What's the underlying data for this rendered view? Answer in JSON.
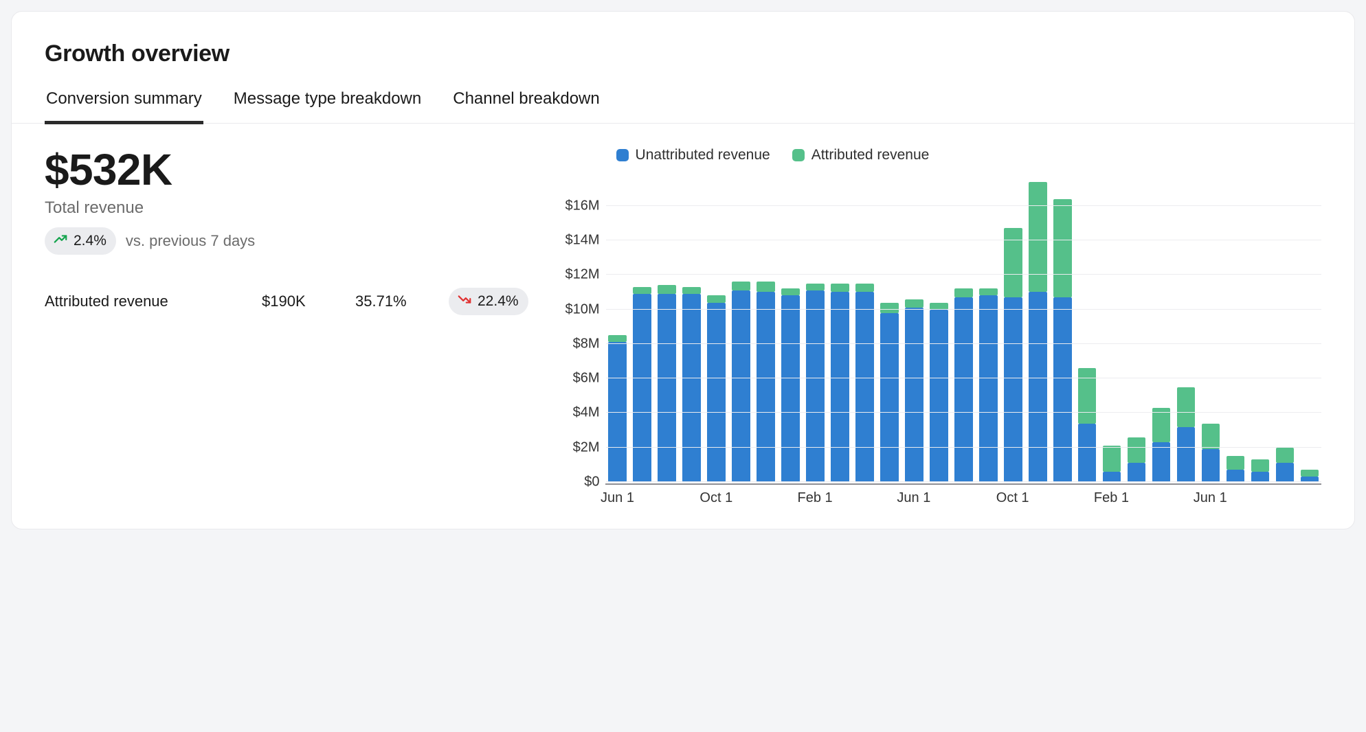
{
  "title": "Growth overview",
  "tabs": [
    {
      "label": "Conversion summary",
      "active": true
    },
    {
      "label": "Message type breakdown",
      "active": false
    },
    {
      "label": "Channel breakdown",
      "active": false
    }
  ],
  "summary": {
    "total_revenue_value": "$532K",
    "total_revenue_label": "Total revenue",
    "change": {
      "direction": "up",
      "value": "2.4%",
      "color": "#14a44d"
    },
    "compare_text": "vs. previous 7 days"
  },
  "metrics": [
    {
      "label": "Attributed revenue",
      "value": "$190K",
      "share": "35.71%",
      "change": {
        "direction": "down",
        "value": "22.4%",
        "color": "#e03131"
      }
    }
  ],
  "chart": {
    "type": "stacked-bar",
    "legend": [
      {
        "label": "Unattributed revenue",
        "color": "#2f7fd1"
      },
      {
        "label": "Attributed revenue",
        "color": "#55c08a"
      }
    ],
    "y": {
      "min": 0,
      "max": 17.5,
      "unit": "$M",
      "ticks": [
        0,
        2,
        4,
        6,
        8,
        10,
        12,
        14,
        16
      ],
      "tick_labels": [
        "$0",
        "$2M",
        "$4M",
        "$6M",
        "$8M",
        "$10M",
        "$12M",
        "$14M",
        "$16M"
      ],
      "grid_color": "#ececef",
      "label_fontsize": 20
    },
    "x": {
      "ticks_at_index": [
        0,
        4,
        8,
        12,
        16,
        20,
        24
      ],
      "tick_labels": [
        "Jun 1",
        "Oct 1",
        "Feb 1",
        "Jun 1",
        "Oct 1",
        "Feb 1",
        "Jun 1"
      ],
      "label_fontsize": 20,
      "axis_color": "#8f8f94"
    },
    "colors": {
      "unattributed": "#2f7fd1",
      "attributed": "#55c08a",
      "background": "#ffffff"
    },
    "bar_width_ratio": 0.78,
    "bars": [
      {
        "unattributed": 8.1,
        "attributed": 0.4
      },
      {
        "unattributed": 10.9,
        "attributed": 0.4
      },
      {
        "unattributed": 10.9,
        "attributed": 0.5
      },
      {
        "unattributed": 10.9,
        "attributed": 0.4
      },
      {
        "unattributed": 10.4,
        "attributed": 0.4
      },
      {
        "unattributed": 11.1,
        "attributed": 0.5
      },
      {
        "unattributed": 11.0,
        "attributed": 0.6
      },
      {
        "unattributed": 10.8,
        "attributed": 0.4
      },
      {
        "unattributed": 11.1,
        "attributed": 0.4
      },
      {
        "unattributed": 11.0,
        "attributed": 0.5
      },
      {
        "unattributed": 11.0,
        "attributed": 0.5
      },
      {
        "unattributed": 9.8,
        "attributed": 0.6
      },
      {
        "unattributed": 10.1,
        "attributed": 0.5
      },
      {
        "unattributed": 10.0,
        "attributed": 0.4
      },
      {
        "unattributed": 10.7,
        "attributed": 0.5
      },
      {
        "unattributed": 10.8,
        "attributed": 0.4
      },
      {
        "unattributed": 10.7,
        "attributed": 4.0
      },
      {
        "unattributed": 11.0,
        "attributed": 6.4
      },
      {
        "unattributed": 10.7,
        "attributed": 5.7
      },
      {
        "unattributed": 3.4,
        "attributed": 3.2
      },
      {
        "unattributed": 0.6,
        "attributed": 1.5
      },
      {
        "unattributed": 1.1,
        "attributed": 1.5
      },
      {
        "unattributed": 2.3,
        "attributed": 2.0
      },
      {
        "unattributed": 3.2,
        "attributed": 2.3
      },
      {
        "unattributed": 1.9,
        "attributed": 1.5
      },
      {
        "unattributed": 0.7,
        "attributed": 0.8
      },
      {
        "unattributed": 0.6,
        "attributed": 0.7
      },
      {
        "unattributed": 1.1,
        "attributed": 0.9
      },
      {
        "unattributed": 0.3,
        "attributed": 0.4
      }
    ]
  }
}
